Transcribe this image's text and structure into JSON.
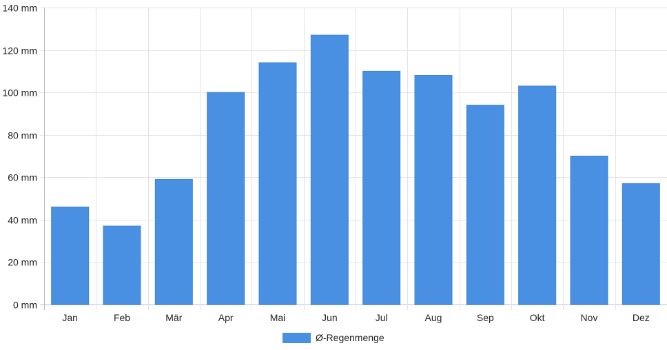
{
  "chart_data": {
    "type": "bar",
    "categories": [
      "Jan",
      "Feb",
      "Mär",
      "Apr",
      "Mai",
      "Jun",
      "Jul",
      "Aug",
      "Sep",
      "Okt",
      "Nov",
      "Dez"
    ],
    "series": [
      {
        "name": "Ø-Regenmenge",
        "values": [
          46,
          37,
          59,
          100,
          114,
          127,
          110,
          108,
          94,
          103,
          70,
          57
        ],
        "color": "#4a90e2"
      }
    ],
    "ylim": [
      0,
      140
    ],
    "yticks": [
      0,
      20,
      40,
      60,
      80,
      100,
      120,
      140
    ],
    "y_tick_unit": "mm",
    "grid": true,
    "legend_position": "bottom-center"
  }
}
